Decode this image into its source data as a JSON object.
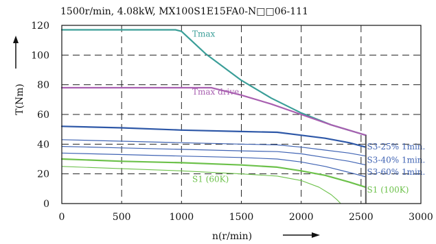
{
  "chart_data": {
    "type": "line",
    "title": "1500r/min, 4.08kW, MX100S1E15FA0-N□□06-111",
    "xlabel": "n(r/min)",
    "ylabel": "T(Nm)",
    "xlim": [
      0,
      3000
    ],
    "ylim": [
      0,
      120
    ],
    "x_ticks": [
      "0",
      "500",
      "1000",
      "1500",
      "2000",
      "2500",
      "3000"
    ],
    "y_ticks": [
      "0",
      "20",
      "40",
      "60",
      "80",
      "100",
      "120"
    ],
    "grid": true,
    "series": [
      {
        "name": "Tmax",
        "color": "#3a9e98",
        "width": 2.2,
        "x": [
          0,
          950,
          1000,
          1200,
          1500,
          1750,
          2000,
          2250,
          2540
        ],
        "y": [
          117,
          117,
          116,
          101,
          83,
          71,
          61,
          53,
          46
        ]
      },
      {
        "name": "Tmax drive",
        "color": "#a85fb0",
        "width": 2.2,
        "x": [
          0,
          1250,
          1500,
          1750,
          2000,
          2250,
          2540
        ],
        "y": [
          78,
          78,
          73,
          67,
          60,
          53,
          46
        ]
      },
      {
        "name": "",
        "color": "#2d57a7",
        "width": 2.2,
        "x": [
          0,
          500,
          1000,
          1500,
          1800,
          2000,
          2200,
          2400,
          2540
        ],
        "y": [
          52,
          51,
          49.5,
          48.5,
          48,
          46,
          44,
          41,
          38
        ]
      },
      {
        "name": "S3-25% 1min.",
        "color": "#3f63b3",
        "width": 1.2,
        "x": [
          0,
          500,
          1000,
          1500,
          1800,
          2000,
          2200,
          2400,
          2540
        ],
        "y": [
          43,
          42,
          41,
          40,
          39.5,
          38,
          36,
          34,
          32
        ]
      },
      {
        "name": "S3-40% 1min.",
        "color": "#3f63b3",
        "width": 1.2,
        "x": [
          0,
          500,
          1000,
          1500,
          1800,
          2000,
          2200,
          2400,
          2540
        ],
        "y": [
          38.5,
          37.5,
          36.5,
          35.5,
          35,
          33.5,
          31,
          28.5,
          26
        ]
      },
      {
        "name": "S3-60% 1min.",
        "color": "#3f63b3",
        "width": 1.2,
        "x": [
          0,
          500,
          1000,
          1500,
          1800,
          2000,
          2200,
          2400,
          2540
        ],
        "y": [
          34,
          33,
          32,
          31,
          30,
          28,
          25,
          21,
          18
        ]
      },
      {
        "name": "S1 (100K)",
        "color": "#6cc14a",
        "width": 2.2,
        "x": [
          0,
          500,
          1000,
          1500,
          1800,
          2000,
          2200,
          2400,
          2540
        ],
        "y": [
          30,
          28.5,
          27.5,
          26,
          24.5,
          22,
          19,
          14.5,
          11
        ]
      },
      {
        "name": "S1 (60K)",
        "color": "#6cc14a",
        "width": 1.1,
        "x": [
          0,
          500,
          1000,
          1500,
          1800,
          2000,
          2150,
          2250,
          2300,
          2330
        ],
        "y": [
          25,
          23.5,
          22,
          20,
          18.5,
          15.5,
          11,
          6,
          2.5,
          0
        ]
      }
    ],
    "labels": [
      {
        "text": "Tmax",
        "x": 1090,
        "y": 112.5,
        "color": "#3a9e98"
      },
      {
        "text": "Tmax drive",
        "x": 1090,
        "y": 73.5,
        "color": "#a85fb0"
      },
      {
        "text": "S3-25% 1min.",
        "x": 2550,
        "y": 36.5,
        "color": "#3f63b3"
      },
      {
        "text": "S3-40% 1min.",
        "x": 2550,
        "y": 27.5,
        "color": "#3f63b3"
      },
      {
        "text": "S3-60% 1min.",
        "x": 2550,
        "y": 19.5,
        "color": "#3f63b3"
      },
      {
        "text": "S1 (100K)",
        "x": 2550,
        "y": 7.5,
        "color": "#6cc14a"
      },
      {
        "text": "S1 (60K)",
        "x": 1090,
        "y": 14.5,
        "color": "#6cc14a"
      }
    ]
  }
}
